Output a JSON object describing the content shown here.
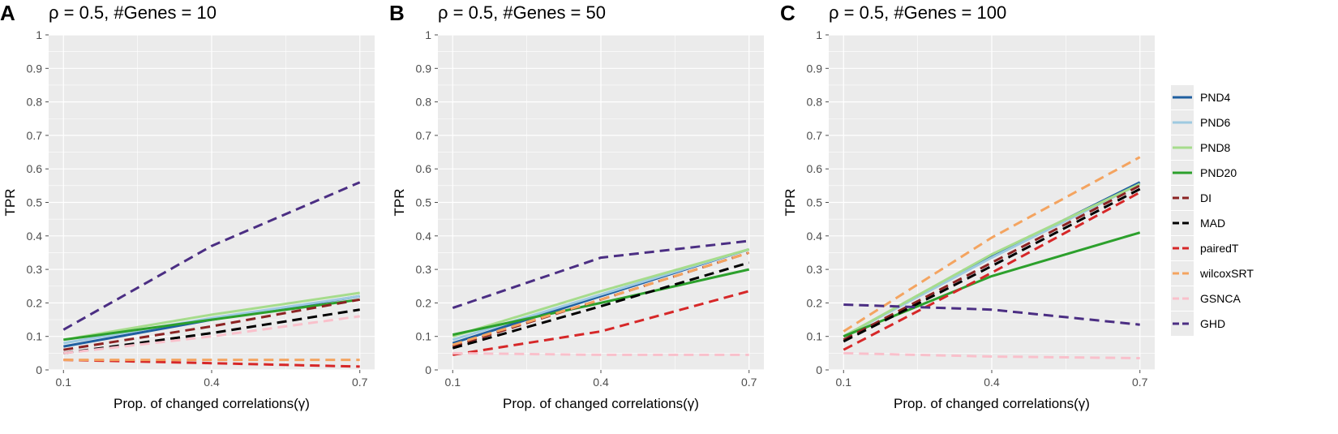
{
  "chart_data": [
    {
      "panel": "A",
      "type": "line",
      "title": "ρ = 0.5, #Genes = 10",
      "xlabel": "Prop. of changed correlations(γ)",
      "ylabel": "TPR",
      "x": [
        0.1,
        0.4,
        0.7
      ],
      "xticks": [
        "0.1",
        "0.4",
        "0.7"
      ],
      "yticks": [
        "0",
        "0.1",
        "0.2",
        "0.3",
        "0.4",
        "0.5",
        "0.6",
        "0.7",
        "0.8",
        "0.9",
        "1"
      ],
      "ylim": [
        0,
        1
      ],
      "series": [
        {
          "name": "PND4",
          "values": [
            0.07,
            0.15,
            0.22
          ]
        },
        {
          "name": "PND6",
          "values": [
            0.08,
            0.155,
            0.22
          ]
        },
        {
          "name": "PND8",
          "values": [
            0.09,
            0.165,
            0.23
          ]
        },
        {
          "name": "PND20",
          "values": [
            0.09,
            0.15,
            0.21
          ]
        },
        {
          "name": "DI",
          "values": [
            0.06,
            0.13,
            0.21
          ]
        },
        {
          "name": "MAD",
          "values": [
            0.05,
            0.11,
            0.18
          ]
        },
        {
          "name": "pairedT",
          "values": [
            0.03,
            0.02,
            0.01
          ]
        },
        {
          "name": "wilcoxSRT",
          "values": [
            0.03,
            0.03,
            0.03
          ]
        },
        {
          "name": "GSNCA",
          "values": [
            0.05,
            0.1,
            0.16
          ]
        },
        {
          "name": "GHD",
          "values": [
            0.12,
            0.37,
            0.56
          ]
        }
      ]
    },
    {
      "panel": "B",
      "type": "line",
      "title": "ρ = 0.5, #Genes = 50",
      "xlabel": "Prop. of changed correlations(γ)",
      "ylabel": "TPR",
      "x": [
        0.1,
        0.4,
        0.7
      ],
      "xticks": [
        "0.1",
        "0.4",
        "0.7"
      ],
      "yticks": [
        "0",
        "0.1",
        "0.2",
        "0.3",
        "0.4",
        "0.5",
        "0.6",
        "0.7",
        "0.8",
        "0.9",
        "1"
      ],
      "ylim": [
        0,
        1
      ],
      "series": [
        {
          "name": "PND4",
          "values": [
            0.08,
            0.22,
            0.36
          ]
        },
        {
          "name": "PND6",
          "values": [
            0.09,
            0.225,
            0.36
          ]
        },
        {
          "name": "PND8",
          "values": [
            0.1,
            0.235,
            0.36
          ]
        },
        {
          "name": "PND20",
          "values": [
            0.105,
            0.2,
            0.3
          ]
        },
        {
          "name": "DI",
          "values": [
            0.07,
            0.21,
            0.35
          ]
        },
        {
          "name": "MAD",
          "values": [
            0.065,
            0.19,
            0.32
          ]
        },
        {
          "name": "pairedT",
          "values": [
            0.045,
            0.115,
            0.235
          ]
        },
        {
          "name": "wilcoxSRT",
          "values": [
            0.075,
            0.21,
            0.35
          ]
        },
        {
          "name": "GSNCA",
          "values": [
            0.05,
            0.045,
            0.045
          ]
        },
        {
          "name": "GHD",
          "values": [
            0.185,
            0.335,
            0.385
          ]
        }
      ]
    },
    {
      "panel": "C",
      "type": "line",
      "title": "ρ = 0.5, #Genes = 100",
      "xlabel": "Prop. of changed correlations(γ)",
      "ylabel": "TPR",
      "x": [
        0.1,
        0.4,
        0.7
      ],
      "xticks": [
        "0.1",
        "0.4",
        "0.7"
      ],
      "yticks": [
        "0",
        "0.1",
        "0.2",
        "0.3",
        "0.4",
        "0.5",
        "0.6",
        "0.7",
        "0.8",
        "0.9",
        "1"
      ],
      "ylim": [
        0,
        1
      ],
      "series": [
        {
          "name": "PND4",
          "values": [
            0.1,
            0.34,
            0.56
          ]
        },
        {
          "name": "PND6",
          "values": [
            0.1,
            0.335,
            0.555
          ]
        },
        {
          "name": "PND8",
          "values": [
            0.1,
            0.345,
            0.555
          ]
        },
        {
          "name": "PND20",
          "values": [
            0.1,
            0.28,
            0.41
          ]
        },
        {
          "name": "DI",
          "values": [
            0.09,
            0.32,
            0.55
          ]
        },
        {
          "name": "MAD",
          "values": [
            0.085,
            0.31,
            0.54
          ]
        },
        {
          "name": "pairedT",
          "values": [
            0.06,
            0.29,
            0.53
          ]
        },
        {
          "name": "wilcoxSRT",
          "values": [
            0.115,
            0.395,
            0.635
          ]
        },
        {
          "name": "GSNCA",
          "values": [
            0.05,
            0.04,
            0.035
          ]
        },
        {
          "name": "GHD",
          "values": [
            0.195,
            0.18,
            0.135
          ]
        }
      ]
    }
  ],
  "legend": {
    "placement": "right",
    "entries": [
      {
        "name": "PND4",
        "color": "#1f5fa0",
        "dash": "solid"
      },
      {
        "name": "PND6",
        "color": "#9ecae1",
        "dash": "solid"
      },
      {
        "name": "PND8",
        "color": "#a6dc8c",
        "dash": "solid"
      },
      {
        "name": "PND20",
        "color": "#2ca02c",
        "dash": "solid"
      },
      {
        "name": "DI",
        "color": "#8b2323",
        "dash": "dashed"
      },
      {
        "name": "MAD",
        "color": "#000000",
        "dash": "dashed"
      },
      {
        "name": "pairedT",
        "color": "#d62728",
        "dash": "dashed"
      },
      {
        "name": "wilcoxSRT",
        "color": "#f4a460",
        "dash": "dashed"
      },
      {
        "name": "GSNCA",
        "color": "#f9c0cb",
        "dash": "dashed"
      },
      {
        "name": "GHD",
        "color": "#4b2e83",
        "dash": "dashed"
      }
    ]
  },
  "colors": {
    "panel_bg": "#ebebeb",
    "grid": "#ffffff",
    "tick": "#4d4d4d"
  }
}
